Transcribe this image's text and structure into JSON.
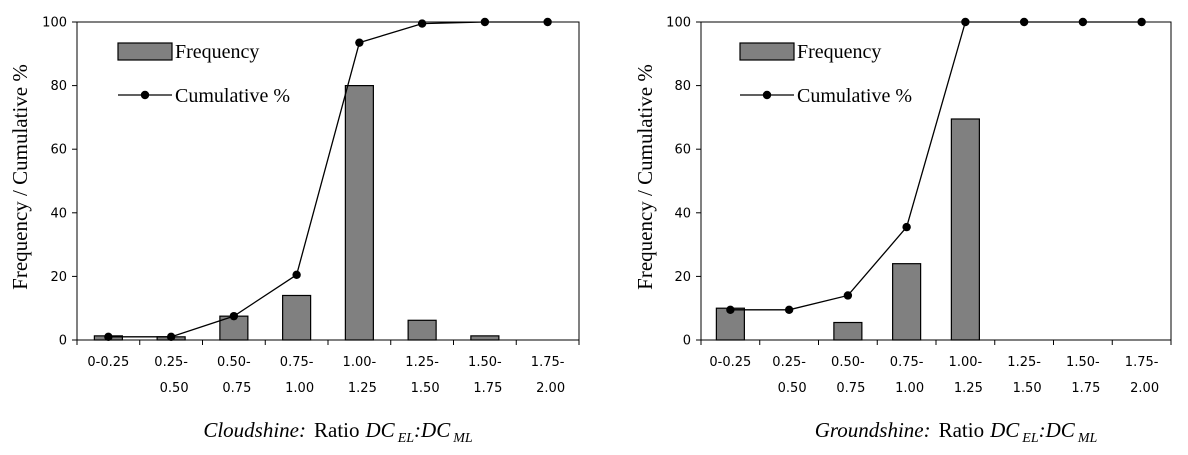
{
  "chart_data": [
    {
      "type": "bar",
      "caption": {
        "prefix": "Cloudshine:",
        "ratio_word": "Ratio",
        "dc": "DC",
        "sub1": "EL",
        "colon": ":",
        "sub2": "ML"
      },
      "ylabel": "Frequency / Cumulative %",
      "ylim": [
        0,
        100
      ],
      "yticks": [
        "0",
        "20",
        "40",
        "60",
        "80",
        "100"
      ],
      "categories": [
        [
          "0-0.25",
          ""
        ],
        [
          "0.25-",
          "0.50"
        ],
        [
          "0.50-",
          "0.75"
        ],
        [
          "0.75-",
          "1.00"
        ],
        [
          "1.00-",
          "1.25"
        ],
        [
          "1.25-",
          "1.50"
        ],
        [
          "1.50-",
          "1.75"
        ],
        [
          "1.75-",
          "2.00"
        ]
      ],
      "series": [
        {
          "name": "Frequency",
          "type": "bar",
          "values": [
            1.3,
            1,
            7.5,
            14,
            80,
            6.2,
            1.3,
            0
          ]
        },
        {
          "name": "Cumulative %",
          "type": "line",
          "values": [
            1,
            1,
            7.5,
            20.5,
            93.5,
            99.5,
            100,
            100
          ]
        }
      ],
      "legend": "top-left",
      "grid": false
    },
    {
      "type": "bar",
      "caption": {
        "prefix": "Groundshine:",
        "ratio_word": "Ratio",
        "dc": "DC",
        "sub1": "EL",
        "colon": ":",
        "sub2": "ML"
      },
      "ylabel": "Frequency / Cumulative %",
      "ylim": [
        0,
        100
      ],
      "yticks": [
        "0",
        "20",
        "40",
        "60",
        "80",
        "100"
      ],
      "categories": [
        [
          "0-0.25",
          ""
        ],
        [
          "0.25-",
          "0.50"
        ],
        [
          "0.50-",
          "0.75"
        ],
        [
          "0.75-",
          "1.00"
        ],
        [
          "1.00-",
          "1.25"
        ],
        [
          "1.25-",
          "1.50"
        ],
        [
          "1.50-",
          "1.75"
        ],
        [
          "1.75-",
          "2.00"
        ]
      ],
      "series": [
        {
          "name": "Frequency",
          "type": "bar",
          "values": [
            10,
            0,
            5.5,
            24,
            69.5,
            0,
            0,
            0
          ]
        },
        {
          "name": "Cumulative %",
          "type": "line",
          "values": [
            9.5,
            9.5,
            14,
            35.5,
            100,
            100,
            100,
            100
          ]
        }
      ],
      "legend": "top-left",
      "grid": false
    }
  ],
  "colors": {
    "bar_fill": "#808080",
    "bar_stroke": "#000000",
    "line": "#000000",
    "marker": "#000000"
  }
}
